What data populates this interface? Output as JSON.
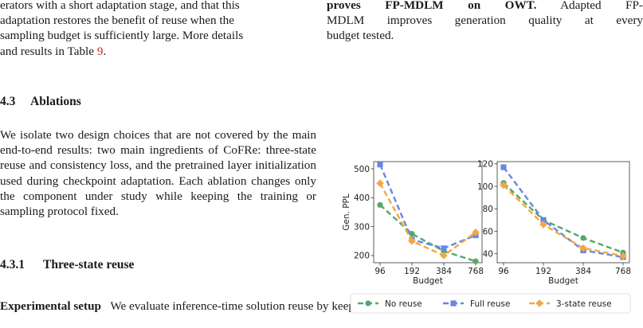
{
  "left": {
    "intro_lines": [
      "erators with a short adaptation stage, and that this",
      "adaptation restores the benefit of reuse when the",
      "sampling budget is sufficiently large. More details",
      "and results in Table "
    ],
    "intro_ref": "9",
    "intro_end": ".",
    "section_number": "4.3",
    "section_title": "Ablations",
    "ablation_text": "We isolate two design choices that are not covered by the main end-to-end results: two main ingredients of CoFRe: three-state reuse and consistency loss, and the pretrained layer initialization used during checkpoint adaptation. Each ablation changes only the component under study while keeping the training or sampling protocol fixed.",
    "subsection_number": "4.3.1",
    "subsection_title": "Three-state reuse",
    "exp_label": "Experimental setup",
    "exp_text": "We evaluate inference-time solution reuse by keeping the FP-MDLM check-"
  },
  "right": {
    "caption_bold_1": "proves FP-MDLM on OWT.",
    "caption_rest_1": " Adapted FP-",
    "caption_line_2": "MDLM improves generation quality at every",
    "caption_line_3": "budget tested."
  },
  "chart_data": [
    {
      "type": "line",
      "x": [
        96,
        192,
        384,
        768
      ],
      "xticks": [
        "96",
        "192",
        "384",
        "768"
      ],
      "xlabel": "Budget",
      "ylabel": "Gen. PPL",
      "ylim": [
        175,
        525
      ],
      "yticks": [
        200,
        300,
        400,
        500
      ],
      "grid": false,
      "series": [
        {
          "name": "No reuse",
          "values": [
            375,
            275,
            215,
            180
          ],
          "color": "#55a868",
          "marker": "circle"
        },
        {
          "name": "Full reuse",
          "values": [
            515,
            255,
            225,
            270
          ],
          "color": "#6688e0",
          "marker": "square"
        },
        {
          "name": "3-state reuse",
          "values": [
            450,
            250,
            200,
            280
          ],
          "color": "#f5a742",
          "marker": "diamond"
        }
      ]
    },
    {
      "type": "line",
      "x": [
        96,
        192,
        384,
        768
      ],
      "xticks": [
        "96",
        "192",
        "384",
        "768"
      ],
      "xlabel": "Budget",
      "ylabel": "",
      "ylim": [
        32,
        122
      ],
      "yticks": [
        40,
        60,
        80,
        100,
        120
      ],
      "grid": false,
      "series": [
        {
          "name": "No reuse",
          "values": [
            103,
            70,
            54,
            41
          ],
          "color": "#55a868",
          "marker": "circle"
        },
        {
          "name": "Full reuse",
          "values": [
            117,
            70,
            43,
            37
          ],
          "color": "#6688e0",
          "marker": "square"
        },
        {
          "name": "3-state reuse",
          "values": [
            101,
            66,
            45,
            38
          ],
          "color": "#f5a742",
          "marker": "diamond"
        }
      ]
    }
  ],
  "legend": {
    "items": [
      {
        "label": "No reuse",
        "color": "#55a868",
        "marker": "circle"
      },
      {
        "label": "Full reuse",
        "color": "#6688e0",
        "marker": "square"
      },
      {
        "label": "3-state reuse",
        "color": "#f5a742",
        "marker": "diamond"
      }
    ],
    "placement": "bottom"
  }
}
